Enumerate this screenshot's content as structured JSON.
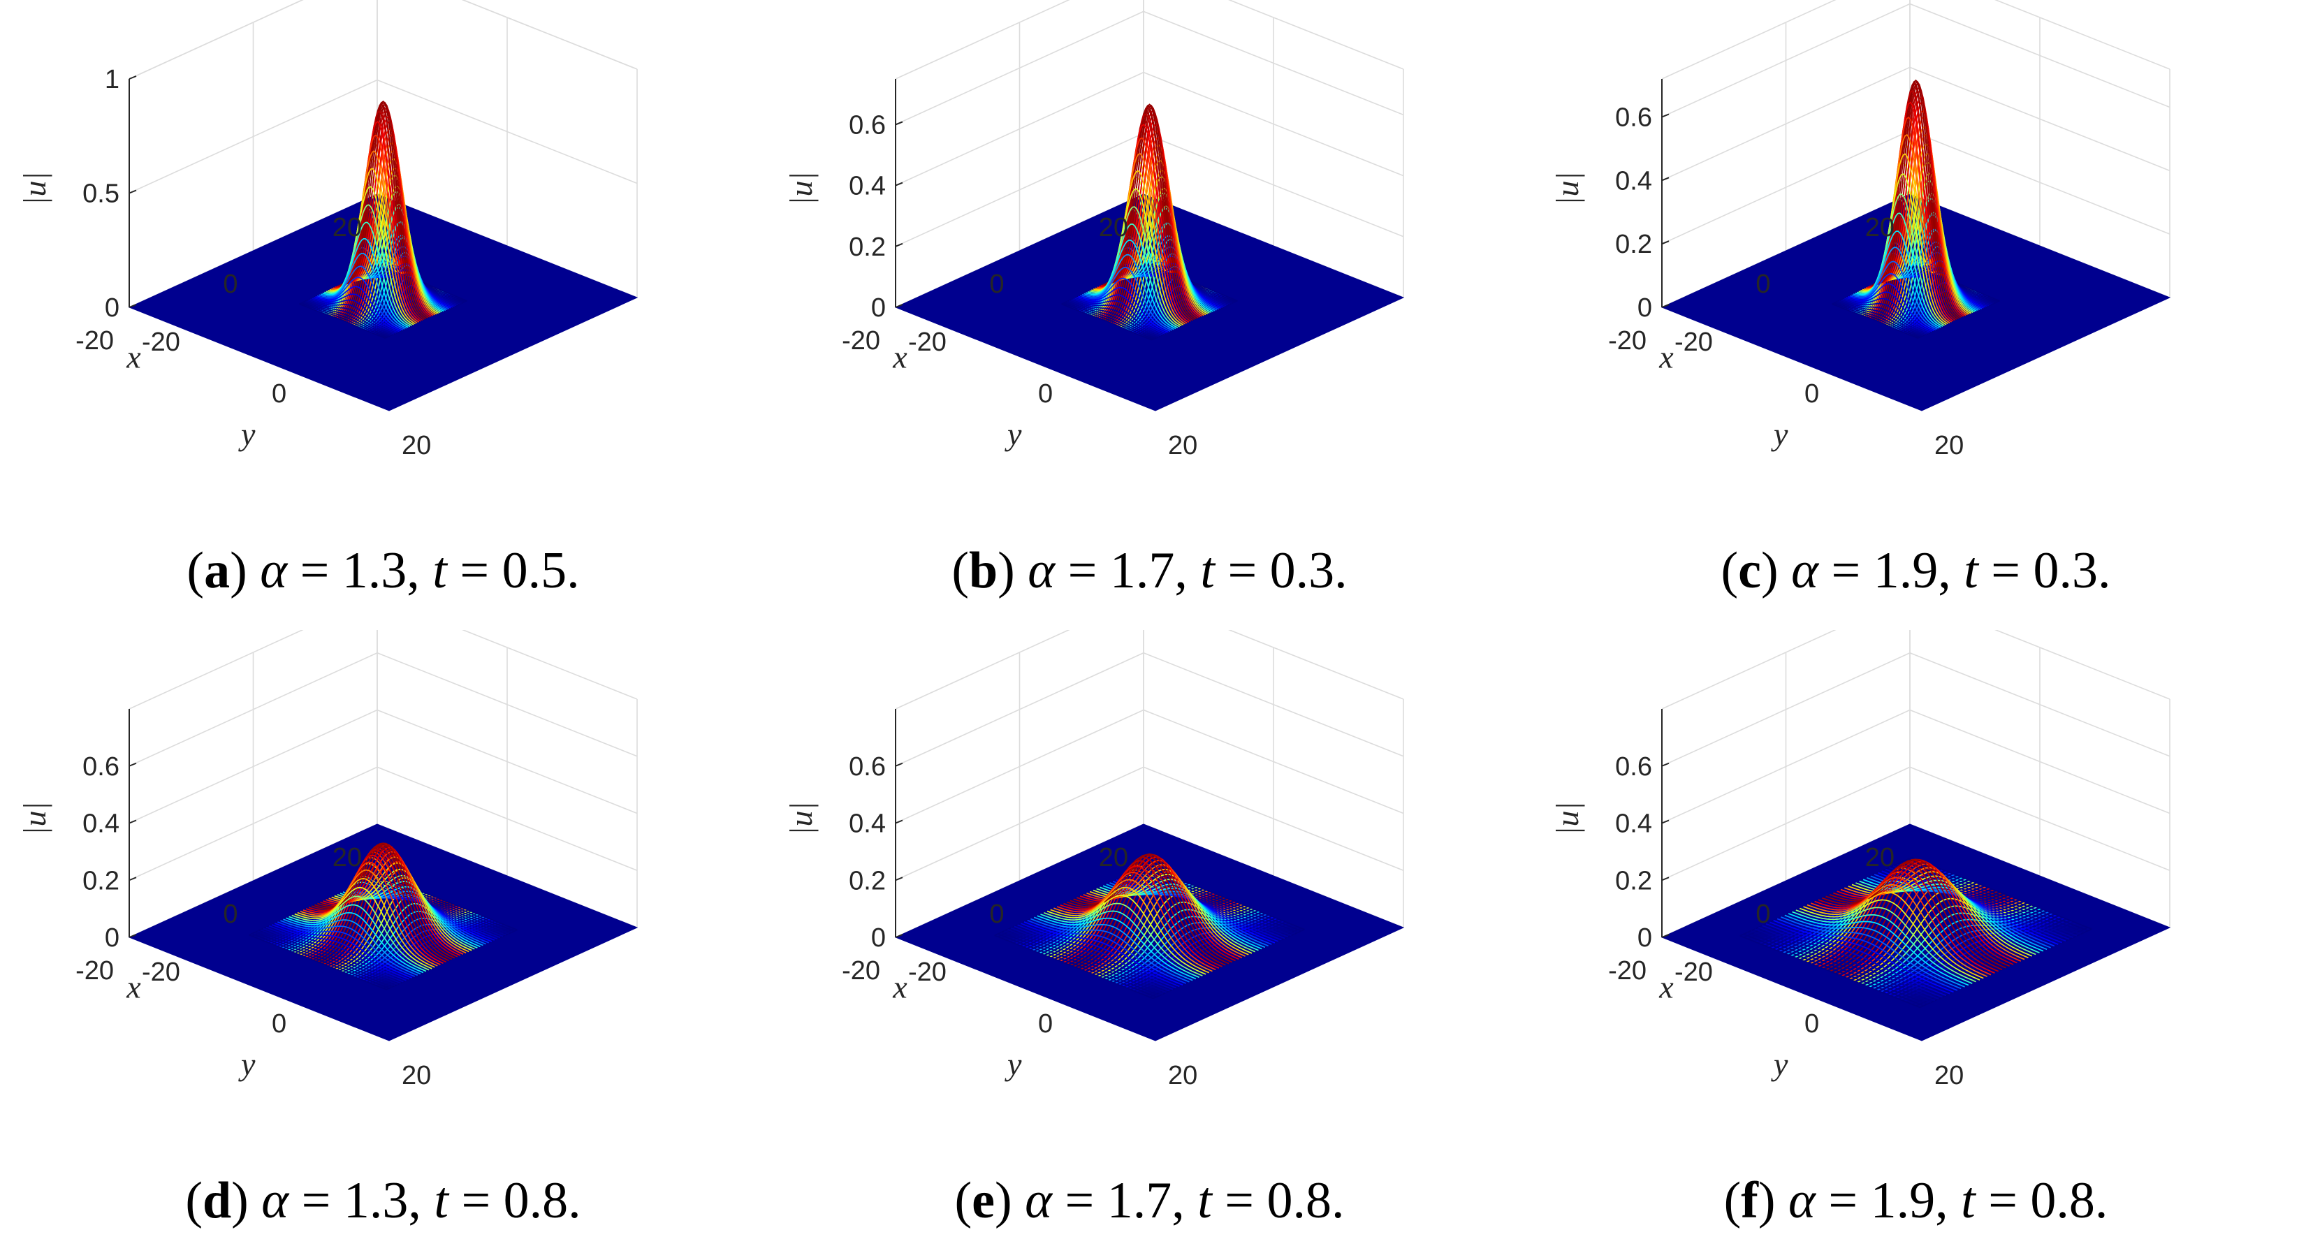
{
  "figure": {
    "x_label": "x",
    "y_label": "y",
    "z_label": "|u|",
    "panels": [
      {
        "letter": "a",
        "alpha": "1.3",
        "t": "0.5",
        "zticks": [
          "0",
          "0.5",
          "1"
        ],
        "zmax": 1.0
      },
      {
        "letter": "b",
        "alpha": "1.7",
        "t": "0.3",
        "zticks": [
          "0",
          "0.2",
          "0.4",
          "0.6"
        ],
        "zmax": 0.75
      },
      {
        "letter": "c",
        "alpha": "1.9",
        "t": "0.3",
        "zticks": [
          "0",
          "0.2",
          "0.4",
          "0.6"
        ],
        "zmax": 0.72
      },
      {
        "letter": "d",
        "alpha": "1.3",
        "t": "0.8",
        "zticks": [
          "0",
          "0.2",
          "0.4",
          "0.6"
        ],
        "zmax": 0.8
      },
      {
        "letter": "e",
        "alpha": "1.7",
        "t": "0.8",
        "zticks": [
          "0",
          "0.2",
          "0.4",
          "0.6"
        ],
        "zmax": 0.8
      },
      {
        "letter": "f",
        "alpha": "1.9",
        "t": "0.8",
        "zticks": [
          "0",
          "0.2",
          "0.4",
          "0.6"
        ],
        "zmax": 0.8
      }
    ]
  },
  "chart_data": [
    {
      "type": "surface",
      "panel": "a",
      "xlabel": "x",
      "ylabel": "y",
      "zlabel": "|u|",
      "xlim": [
        -20,
        20
      ],
      "ylim": [
        -20,
        20
      ],
      "zlim": [
        0,
        1
      ],
      "xticks": [
        -20,
        0,
        20
      ],
      "yticks": [
        -20,
        0,
        20
      ],
      "zticks": [
        0,
        0.5,
        1
      ],
      "peak": 0.88,
      "peak_x": 0,
      "peak_y": 0,
      "width": 2.0,
      "grid": true,
      "colormap": "jet"
    },
    {
      "type": "surface",
      "panel": "b",
      "xlabel": "x",
      "ylabel": "y",
      "zlabel": "|u|",
      "xlim": [
        -20,
        20
      ],
      "ylim": [
        -20,
        20
      ],
      "zlim": [
        0,
        0.75
      ],
      "xticks": [
        -20,
        0,
        20
      ],
      "yticks": [
        -20,
        0,
        20
      ],
      "zticks": [
        0,
        0.2,
        0.4,
        0.6
      ],
      "peak": 0.65,
      "peak_x": 0,
      "peak_y": 0,
      "width": 2.1,
      "grid": true,
      "colormap": "jet"
    },
    {
      "type": "surface",
      "panel": "c",
      "xlabel": "x",
      "ylabel": "y",
      "zlabel": "|u|",
      "xlim": [
        -20,
        20
      ],
      "ylim": [
        -20,
        20
      ],
      "zlim": [
        0,
        0.72
      ],
      "xticks": [
        -20,
        0,
        20
      ],
      "yticks": [
        -20,
        0,
        20
      ],
      "zticks": [
        0,
        0.2,
        0.4,
        0.6
      ],
      "peak": 0.7,
      "peak_x": 0,
      "peak_y": 0,
      "width": 2.0,
      "grid": true,
      "colormap": "jet"
    },
    {
      "type": "surface",
      "panel": "d",
      "xlabel": "x",
      "ylabel": "y",
      "zlabel": "|u|",
      "xlim": [
        -20,
        20
      ],
      "ylim": [
        -20,
        20
      ],
      "zlim": [
        0,
        0.8
      ],
      "xticks": [
        -20,
        0,
        20
      ],
      "yticks": [
        -20,
        0,
        20
      ],
      "zticks": [
        0,
        0.2,
        0.4,
        0.6
      ],
      "peak": 0.31,
      "peak_x": 0,
      "peak_y": 0,
      "width": 3.2,
      "grid": true,
      "colormap": "jet"
    },
    {
      "type": "surface",
      "panel": "e",
      "xlabel": "x",
      "ylabel": "y",
      "zlabel": "|u|",
      "xlim": [
        -20,
        20
      ],
      "ylim": [
        -20,
        20
      ],
      "zlim": [
        0,
        0.8
      ],
      "xticks": [
        -20,
        0,
        20
      ],
      "yticks": [
        -20,
        0,
        20
      ],
      "zticks": [
        0,
        0.2,
        0.4,
        0.6
      ],
      "peak": 0.27,
      "peak_x": 0,
      "peak_y": 0,
      "width": 3.7,
      "grid": true,
      "colormap": "jet"
    },
    {
      "type": "surface",
      "panel": "f",
      "xlabel": "x",
      "ylabel": "y",
      "zlabel": "|u|",
      "xlim": [
        -20,
        20
      ],
      "ylim": [
        -20,
        20
      ],
      "zlim": [
        0,
        0.8
      ],
      "xticks": [
        -20,
        0,
        20
      ],
      "yticks": [
        -20,
        0,
        20
      ],
      "zticks": [
        0,
        0.2,
        0.4,
        0.6
      ],
      "peak": 0.25,
      "peak_x": 0,
      "peak_y": 0,
      "width": 4.2,
      "grid": true,
      "colormap": "jet"
    }
  ]
}
